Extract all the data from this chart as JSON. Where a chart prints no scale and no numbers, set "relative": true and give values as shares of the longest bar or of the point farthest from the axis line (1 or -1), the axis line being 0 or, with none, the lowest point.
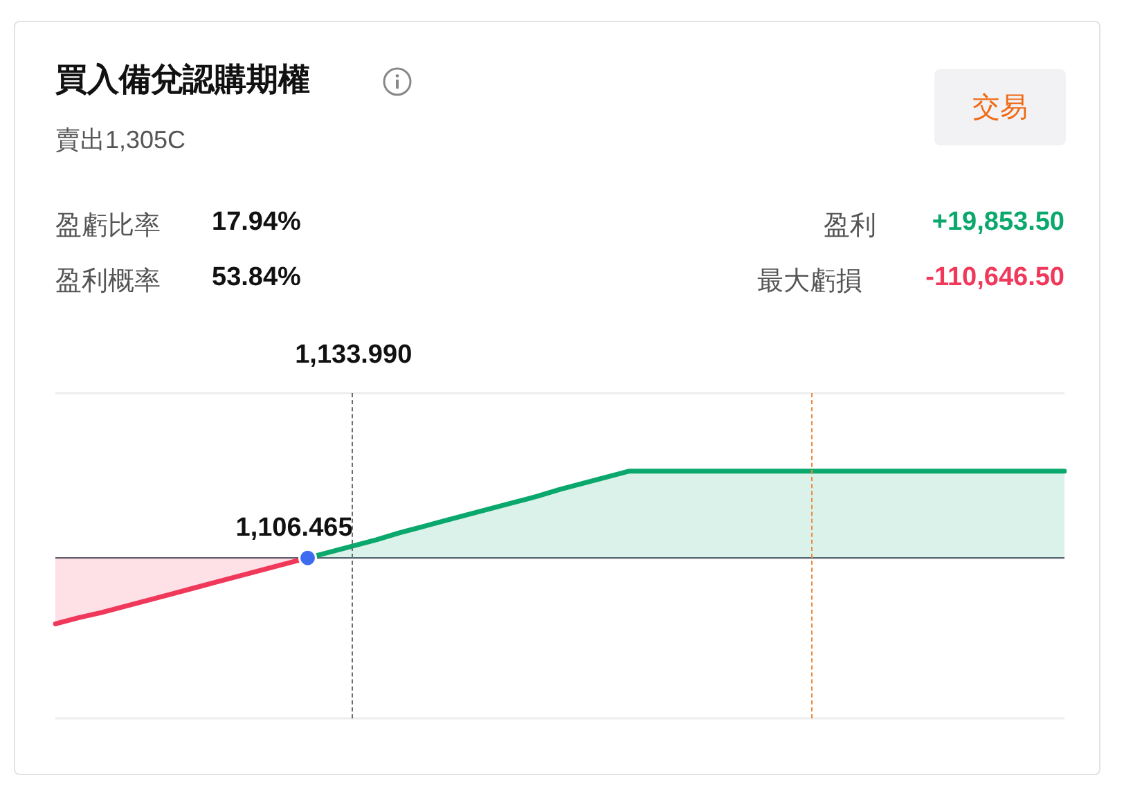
{
  "chart_data": {
    "type": "area",
    "title": "買入備兌認購期權",
    "subtitle": "賣出1,305C",
    "relative": true,
    "tick_labels": false,
    "legend": false,
    "marker": "none",
    "categories": [
      null,
      null,
      null,
      null,
      null,
      null,
      null,
      null,
      null,
      null,
      null,
      null,
      null,
      null,
      null,
      null,
      null,
      null,
      null,
      null,
      null,
      null,
      null,
      null,
      null,
      null,
      null,
      null,
      null,
      null,
      null,
      null,
      null,
      null,
      null,
      null,
      null,
      null,
      null,
      null,
      null,
      null,
      null,
      null,
      null
    ],
    "series": [
      {
        "color": "#f0385a",
        "values": [
          -0.76,
          -0.69,
          -0.63,
          -0.56,
          -0.49,
          -0.42,
          -0.35,
          -0.28,
          -0.21,
          -0.14,
          -0.07,
          0,
          null,
          null,
          null,
          null,
          null,
          null,
          null,
          null,
          null,
          null,
          null,
          null,
          null,
          null,
          null,
          null,
          null,
          null,
          null,
          null,
          null,
          null,
          null,
          null,
          null,
          null,
          null,
          null,
          null,
          null,
          null,
          null,
          null
        ]
      },
      {
        "color": "#0aa86c",
        "values": [
          null,
          null,
          null,
          null,
          null,
          null,
          null,
          null,
          null,
          null,
          null,
          0,
          0.07,
          0.14,
          0.21,
          0.29,
          0.36,
          0.43,
          0.5,
          0.57,
          0.64,
          0.71,
          0.79,
          0.86,
          0.93,
          1,
          1,
          1,
          1,
          1,
          1,
          1,
          1,
          1,
          1,
          1,
          1,
          1,
          1,
          1,
          1,
          1,
          1,
          1,
          1
        ]
      }
    ],
    "annotations": [
      "盈虧比率",
      "17.94%",
      "盈利概率",
      "53.84%",
      "盈利",
      "+19,853.50",
      "最大虧損",
      "-110,646.50",
      "交易",
      {
        "text": "1,106.465",
        "y": 0
      },
      "1,133.990"
    ]
  }
}
